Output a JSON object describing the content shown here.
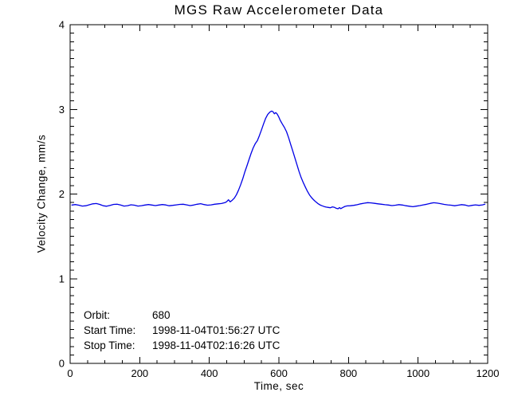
{
  "title": "MGS Raw Accelerometer Data",
  "annotations": {
    "orbit_label": "Orbit:",
    "orbit_value": "680",
    "start_label": "Start Time:",
    "start_value": "1998-11-04T01:56:27 UTC",
    "stop_label": "Stop Time:",
    "stop_value": "1998-11-04T02:16:26 UTC"
  },
  "colors": {
    "background": "#ffffff",
    "axis": "#000000",
    "text": "#000000",
    "line": "#0000e6"
  },
  "chart_data": {
    "type": "line",
    "title": "MGS Raw Accelerometer Data",
    "xlabel": "Time, sec",
    "ylabel": "Velocity Change, mm/s",
    "xlim": [
      0,
      1200
    ],
    "ylim": [
      0,
      4
    ],
    "x_ticks": [
      0,
      200,
      400,
      600,
      800,
      1000,
      1200
    ],
    "y_ticks": [
      0,
      1,
      2,
      3,
      4
    ],
    "x_minor_interval": 50,
    "y_minor_interval": 0.1,
    "grid": false,
    "legend": false,
    "series": [
      {
        "name": "raw accelerometer velocity change",
        "color": "#0000e6",
        "points": [
          [
            5,
            1.87
          ],
          [
            15,
            1.876
          ],
          [
            25,
            1.868
          ],
          [
            35,
            1.858
          ],
          [
            45,
            1.862
          ],
          [
            55,
            1.873
          ],
          [
            65,
            1.884
          ],
          [
            75,
            1.888
          ],
          [
            85,
            1.878
          ],
          [
            95,
            1.862
          ],
          [
            105,
            1.856
          ],
          [
            115,
            1.866
          ],
          [
            125,
            1.878
          ],
          [
            135,
            1.88
          ],
          [
            145,
            1.87
          ],
          [
            155,
            1.858
          ],
          [
            165,
            1.863
          ],
          [
            175,
            1.873
          ],
          [
            185,
            1.868
          ],
          [
            195,
            1.858
          ],
          [
            205,
            1.863
          ],
          [
            215,
            1.87
          ],
          [
            225,
            1.876
          ],
          [
            235,
            1.87
          ],
          [
            245,
            1.864
          ],
          [
            255,
            1.87
          ],
          [
            265,
            1.876
          ],
          [
            275,
            1.871
          ],
          [
            285,
            1.862
          ],
          [
            295,
            1.866
          ],
          [
            305,
            1.872
          ],
          [
            315,
            1.878
          ],
          [
            325,
            1.88
          ],
          [
            335,
            1.872
          ],
          [
            345,
            1.864
          ],
          [
            355,
            1.87
          ],
          [
            365,
            1.88
          ],
          [
            375,
            1.886
          ],
          [
            385,
            1.876
          ],
          [
            395,
            1.868
          ],
          [
            405,
            1.872
          ],
          [
            415,
            1.88
          ],
          [
            425,
            1.884
          ],
          [
            435,
            1.888
          ],
          [
            445,
            1.898
          ],
          [
            450,
            1.91
          ],
          [
            455,
            1.932
          ],
          [
            460,
            1.908
          ],
          [
            466,
            1.928
          ],
          [
            472,
            1.952
          ],
          [
            478,
            1.992
          ],
          [
            484,
            2.045
          ],
          [
            490,
            2.11
          ],
          [
            496,
            2.18
          ],
          [
            502,
            2.26
          ],
          [
            508,
            2.33
          ],
          [
            514,
            2.405
          ],
          [
            520,
            2.48
          ],
          [
            526,
            2.545
          ],
          [
            532,
            2.595
          ],
          [
            538,
            2.63
          ],
          [
            544,
            2.69
          ],
          [
            550,
            2.76
          ],
          [
            556,
            2.83
          ],
          [
            562,
            2.895
          ],
          [
            568,
            2.94
          ],
          [
            574,
            2.968
          ],
          [
            579,
            2.98
          ],
          [
            583,
            2.972
          ],
          [
            587,
            2.948
          ],
          [
            591,
            2.962
          ],
          [
            595,
            2.945
          ],
          [
            599,
            2.915
          ],
          [
            604,
            2.87
          ],
          [
            610,
            2.825
          ],
          [
            616,
            2.785
          ],
          [
            622,
            2.735
          ],
          [
            628,
            2.665
          ],
          [
            634,
            2.585
          ],
          [
            640,
            2.505
          ],
          [
            646,
            2.425
          ],
          [
            652,
            2.345
          ],
          [
            658,
            2.265
          ],
          [
            664,
            2.195
          ],
          [
            670,
            2.135
          ],
          [
            676,
            2.082
          ],
          [
            682,
            2.032
          ],
          [
            688,
            1.99
          ],
          [
            694,
            1.958
          ],
          [
            700,
            1.93
          ],
          [
            706,
            1.908
          ],
          [
            712,
            1.888
          ],
          [
            718,
            1.872
          ],
          [
            724,
            1.862
          ],
          [
            730,
            1.852
          ],
          [
            736,
            1.846
          ],
          [
            742,
            1.842
          ],
          [
            748,
            1.838
          ],
          [
            754,
            1.848
          ],
          [
            760,
            1.842
          ],
          [
            765,
            1.832
          ],
          [
            770,
            1.826
          ],
          [
            774,
            1.84
          ],
          [
            778,
            1.828
          ],
          [
            784,
            1.842
          ],
          [
            790,
            1.854
          ],
          [
            796,
            1.86
          ],
          [
            805,
            1.862
          ],
          [
            815,
            1.866
          ],
          [
            825,
            1.874
          ],
          [
            835,
            1.884
          ],
          [
            845,
            1.892
          ],
          [
            855,
            1.898
          ],
          [
            865,
            1.896
          ],
          [
            875,
            1.89
          ],
          [
            885,
            1.884
          ],
          [
            895,
            1.88
          ],
          [
            905,
            1.874
          ],
          [
            915,
            1.87
          ],
          [
            925,
            1.864
          ],
          [
            935,
            1.868
          ],
          [
            945,
            1.875
          ],
          [
            955,
            1.87
          ],
          [
            965,
            1.862
          ],
          [
            975,
            1.856
          ],
          [
            985,
            1.85
          ],
          [
            995,
            1.857
          ],
          [
            1005,
            1.864
          ],
          [
            1015,
            1.872
          ],
          [
            1025,
            1.88
          ],
          [
            1035,
            1.89
          ],
          [
            1045,
            1.897
          ],
          [
            1055,
            1.893
          ],
          [
            1065,
            1.886
          ],
          [
            1075,
            1.878
          ],
          [
            1085,
            1.872
          ],
          [
            1095,
            1.868
          ],
          [
            1105,
            1.862
          ],
          [
            1115,
            1.868
          ],
          [
            1125,
            1.875
          ],
          [
            1135,
            1.87
          ],
          [
            1145,
            1.859
          ],
          [
            1155,
            1.866
          ],
          [
            1165,
            1.872
          ],
          [
            1175,
            1.866
          ],
          [
            1185,
            1.872
          ],
          [
            1192,
            1.88
          ]
        ]
      }
    ]
  }
}
